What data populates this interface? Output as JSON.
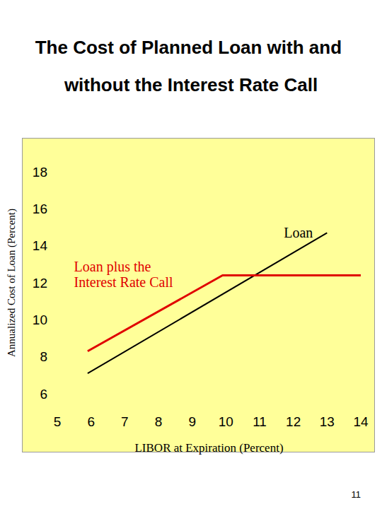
{
  "chart_data": {
    "type": "line",
    "title": "The Cost of Planned Loan with and without the Interest Rate Call",
    "x_label": "LIBOR at Expiration (Percent)",
    "y_label": "Annualized Cost of Loan (Percent)",
    "annotations": [
      "11"
    ],
    "series": [
      {
        "name": "Loan",
        "color": "#000000",
        "x": [
          5.9,
          13.0
        ],
        "values": [
          7.1,
          14.7
        ]
      },
      {
        "name": "Loan plus the Interest Rate Call",
        "color": "#e00000",
        "x": [
          5.9,
          9.9,
          14.0
        ],
        "values": [
          8.3,
          12.4,
          12.4
        ]
      }
    ],
    "xlim": [
      5,
      14
    ],
    "xticks": [
      5,
      6,
      7,
      8,
      9,
      10,
      11,
      12,
      13,
      14
    ],
    "ylim": [
      6,
      18
    ],
    "yticks": [
      6,
      8,
      10,
      12,
      14,
      16,
      18
    ],
    "grid": false,
    "legend": false
  }
}
